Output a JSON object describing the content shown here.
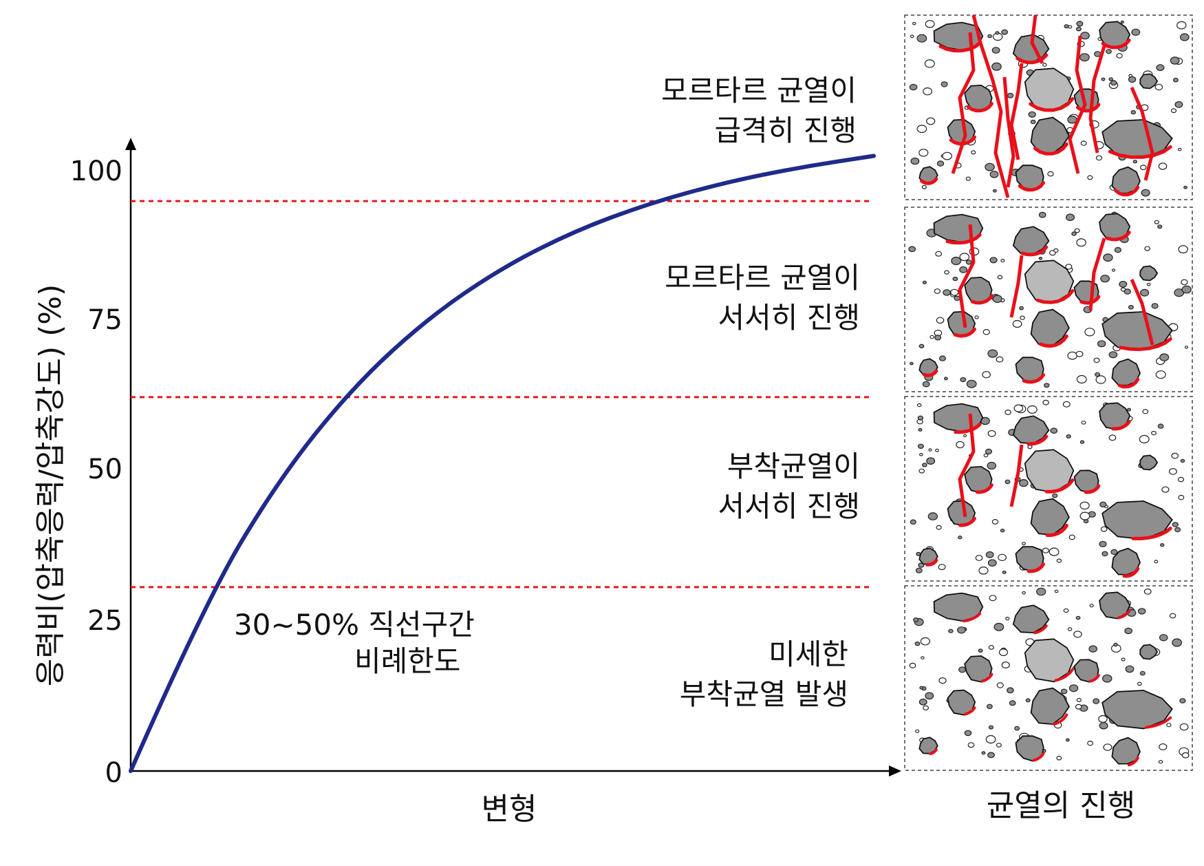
{
  "chart_data": {
    "type": "line",
    "ylabel": "응력비(압축응력/압축강도) (%)",
    "xlabel": "변형",
    "ylim": [
      0,
      100
    ],
    "y_ticks": [
      "0",
      "25",
      "50",
      "75",
      "100"
    ],
    "series": [
      {
        "x": [
          0,
          0.1,
          0.2,
          0.3,
          0.4,
          0.5,
          0.6,
          0.7,
          0.8,
          0.9,
          1.0
        ],
        "y": [
          0,
          28.0,
          48.5,
          63.8,
          75.1,
          83.5,
          89.7,
          94.2,
          97.6,
          100.1,
          102.0
        ]
      }
    ],
    "threshold_lines_percent": [
      30.5,
      62,
      94.5
    ],
    "annotations": [
      {
        "lines": [
          "30~50%  직선구간",
          "비례한도"
        ]
      }
    ],
    "stage_labels": [
      {
        "lines": [
          "모르타르 균열이",
          "급격히 진행"
        ]
      },
      {
        "lines": [
          "모르타르 균열이",
          "서서히 진행"
        ]
      },
      {
        "lines": [
          "부착균열이",
          "서서히 진행"
        ]
      },
      {
        "lines": [
          "미세한",
          "부착균열 발생"
        ]
      }
    ]
  },
  "panels_caption": "균열의 진행",
  "colors": {
    "curve": "#1f2a8a",
    "threshold": "#e01a1a",
    "crack": "#e8101a",
    "aggregate": "#8e8e8e",
    "aggregate_light": "#b9b9b9"
  }
}
